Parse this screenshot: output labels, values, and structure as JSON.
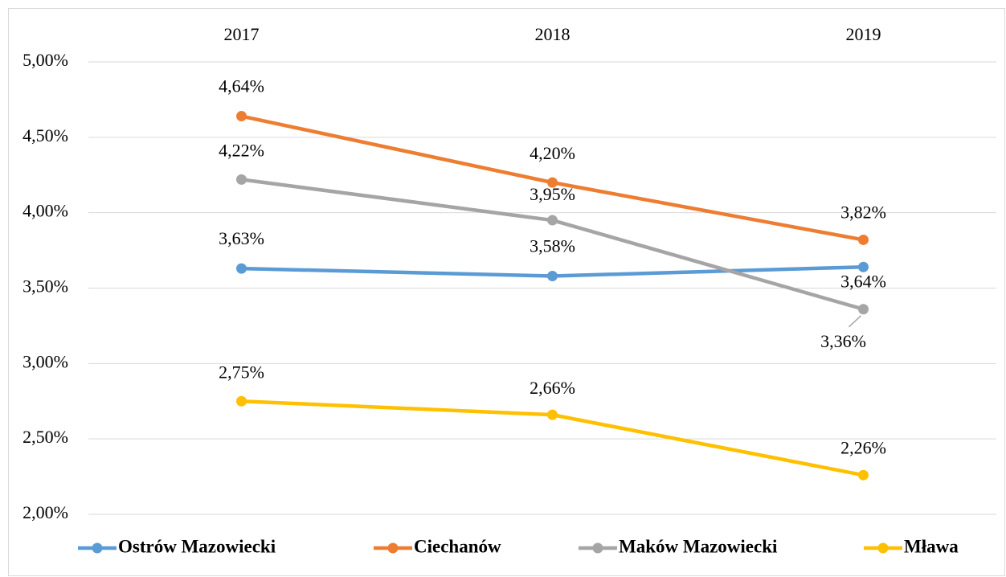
{
  "chart_data": {
    "type": "line",
    "categories": [
      "2017",
      "2018",
      "2019"
    ],
    "ylim": [
      2,
      5
    ],
    "yticks": [
      {
        "value": 2,
        "label": "2,00%"
      },
      {
        "value": 2.5,
        "label": "2,50%"
      },
      {
        "value": 3,
        "label": "3,00%"
      },
      {
        "value": 3.5,
        "label": "3,50%"
      },
      {
        "value": 4,
        "label": "4,00%"
      },
      {
        "value": 4.5,
        "label": "4,50%"
      },
      {
        "value": 5,
        "label": "5,00%"
      }
    ],
    "grid": true,
    "legend": "bottom",
    "series": [
      {
        "name": "Ostrów Mazowiecki",
        "color": "#5b9bd5",
        "values": [
          3.63,
          3.58,
          3.64
        ],
        "value_labels": [
          "3,63%",
          "3,58%",
          "3,64%"
        ]
      },
      {
        "name": "Ciechanów",
        "color": "#ed7d31",
        "values": [
          4.64,
          4.2,
          3.82
        ],
        "value_labels": [
          "4,64%",
          "4,20%",
          "3,82%"
        ]
      },
      {
        "name": "Maków Mazowiecki",
        "color": "#a5a5a5",
        "values": [
          4.22,
          3.95,
          3.36
        ],
        "value_labels": [
          "4,22%",
          "3,95%",
          "3,36%"
        ]
      },
      {
        "name": "Mława",
        "color": "#ffc000",
        "values": [
          2.75,
          2.66,
          2.26
        ],
        "value_labels": [
          "2,75%",
          "2,66%",
          "2,26%"
        ]
      }
    ]
  }
}
